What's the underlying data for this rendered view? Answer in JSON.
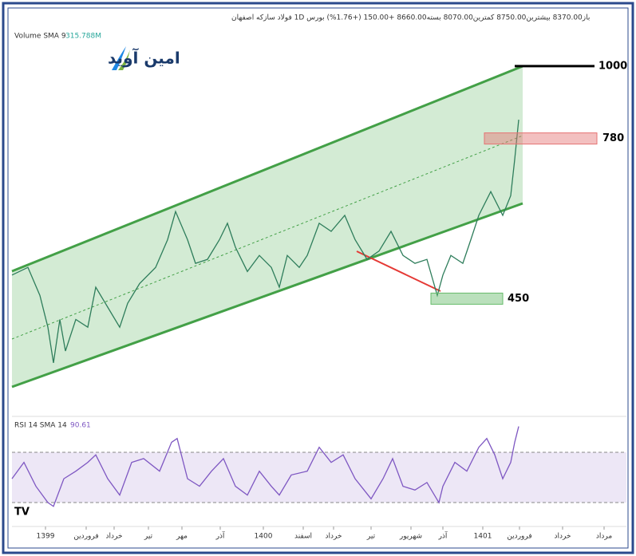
{
  "header": {
    "title": "باز8370.00 بیشترین8750.00 کمترین8070.00 بسته8660.00 +150.00 (+1.76%) بورس 1D فولاد سازکه اصفهان",
    "logo": "امین آوید",
    "volume_label": "Volume SMA 9",
    "volume_value": "315.788M",
    "rsi_label": "RSI 14 SMA 14",
    "rsi_value": "90.61"
  },
  "chart_data": [
    {
      "type": "line",
      "log": true,
      "color": "#2e7d5b",
      "x": [
        0,
        20,
        35,
        45,
        52,
        60,
        67,
        80,
        95,
        105,
        120,
        135,
        145,
        160,
        180,
        195,
        205,
        220,
        230,
        245,
        260,
        270,
        280,
        295,
        310,
        325,
        335,
        345,
        360,
        370,
        385,
        400,
        417,
        430,
        445,
        460,
        475,
        490,
        505,
        520,
        533,
        540,
        550,
        565,
        575,
        585,
        600,
        615,
        625,
        630,
        635
      ],
      "values": [
        488,
        501,
        455,
        408,
        361,
        419,
        376,
        419,
        408,
        468,
        437,
        408,
        443,
        474,
        501,
        551,
        607,
        551,
        508,
        515,
        551,
        583,
        537,
        494,
        522,
        501,
        468,
        522,
        501,
        522,
        583,
        567,
        599,
        551,
        515,
        530,
        567,
        522,
        508,
        515,
        455,
        488,
        522,
        508,
        551,
        599,
        650,
        599,
        641,
        726,
        832
      ],
      "xlim": [
        0,
        770
      ],
      "ylim": [
        302,
        1188
      ],
      "xticks": [
        {
          "value": 42,
          "label": "1399"
        },
        {
          "value": 93,
          "label": "فروردین"
        },
        {
          "value": 128,
          "label": "خرداد"
        },
        {
          "value": 171,
          "label": "تیر"
        },
        {
          "value": 213,
          "label": "مهر"
        },
        {
          "value": 261,
          "label": "آذر"
        },
        {
          "value": 315,
          "label": "1400"
        },
        {
          "value": 365,
          "label": "اسفند"
        },
        {
          "value": 403,
          "label": "خرداد"
        },
        {
          "value": 450,
          "label": "تیر"
        },
        {
          "value": 500,
          "label": "شهریور"
        },
        {
          "value": 540,
          "label": "آذر"
        },
        {
          "value": 590,
          "label": "1401"
        },
        {
          "value": 636,
          "label": "فروردین"
        },
        {
          "value": 690,
          "label": "خرداد"
        },
        {
          "value": 742,
          "label": "مرداد"
        }
      ],
      "levels": [
        {
          "value": 1000,
          "color": "#000000"
        },
        {
          "value": 780,
          "color": "#e57373"
        },
        {
          "value": 450,
          "color": "#66bb6a"
        }
      ]
    },
    {
      "type": "line",
      "color": "#7e57c2",
      "x": [
        0,
        15,
        30,
        45,
        52,
        65,
        80,
        95,
        105,
        120,
        135,
        150,
        165,
        185,
        200,
        207,
        220,
        235,
        250,
        265,
        280,
        295,
        310,
        325,
        335,
        350,
        370,
        385,
        400,
        415,
        430,
        450,
        465,
        477,
        490,
        505,
        520,
        535,
        540,
        555,
        570,
        585,
        595,
        605,
        615,
        625,
        630,
        635
      ],
      "values": [
        49,
        62,
        43,
        30,
        27,
        49,
        55,
        62,
        68,
        49,
        36,
        62,
        65,
        55,
        78,
        81,
        49,
        43,
        55,
        65,
        43,
        36,
        55,
        43,
        36,
        52,
        55,
        74,
        62,
        68,
        49,
        33,
        49,
        65,
        43,
        40,
        46,
        30,
        43,
        62,
        55,
        74,
        81,
        68,
        49,
        62,
        78,
        90.61
      ],
      "xlim": [
        0,
        770
      ],
      "ylim": [
        11,
        93.5
      ],
      "bands": [
        30,
        70
      ]
    }
  ]
}
